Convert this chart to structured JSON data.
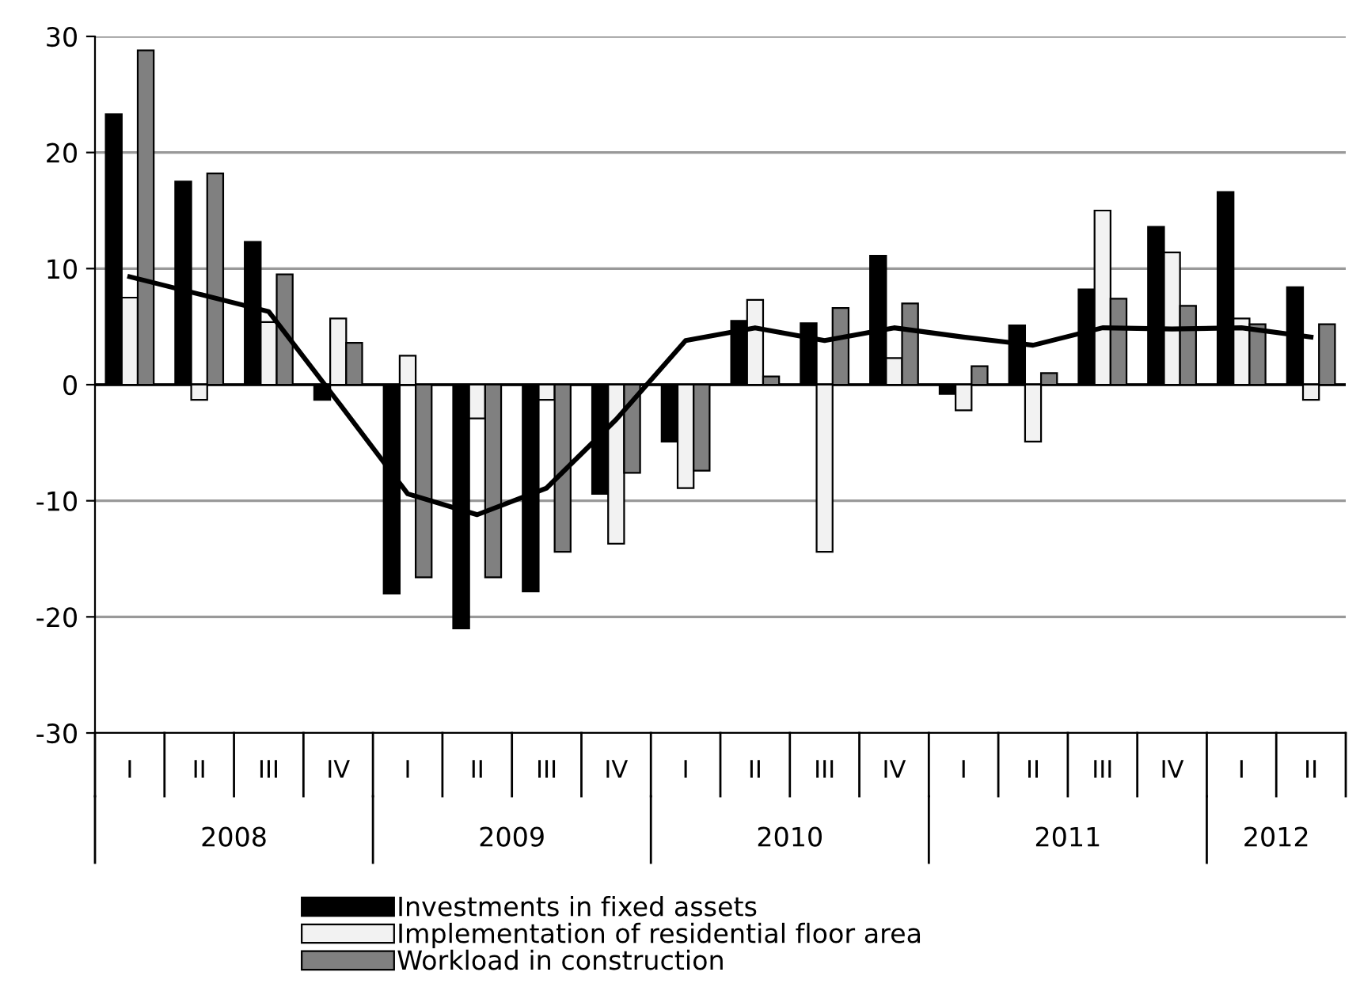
{
  "chart_data": {
    "type": "bar",
    "categories": [
      "I",
      "II",
      "III",
      "IV",
      "I",
      "II",
      "III",
      "IV",
      "I",
      "II",
      "III",
      "IV",
      "I",
      "II",
      "III",
      "IV",
      "I",
      "II"
    ],
    "series": [
      {
        "name": "Investments in fixed assets",
        "color": "#000000",
        "values": [
          23.3,
          17.5,
          12.3,
          -1.3,
          -18,
          -21,
          -17.8,
          -9.4,
          -4.9,
          5.5,
          5.3,
          11.1,
          -0.8,
          5.1,
          8.2,
          13.6,
          16.6,
          8.4
        ]
      },
      {
        "name": "Implementation of residential floor area",
        "color": "#f2f2f2",
        "values": [
          7.5,
          -1.3,
          5.4,
          5.7,
          2.5,
          -2.9,
          -1.3,
          -13.7,
          -8.9,
          7.3,
          -14.4,
          2.3,
          -2.2,
          -4.9,
          15,
          11.4,
          5.7,
          -1.3
        ]
      },
      {
        "name": "Workload in construction",
        "color": "#808080",
        "values": [
          28.8,
          18.2,
          9.5,
          3.6,
          -16.6,
          -16.6,
          -14.4,
          -7.6,
          -7.4,
          0.7,
          6.6,
          7.0,
          1.6,
          1.0,
          7.4,
          6.8,
          5.2,
          5.2
        ]
      },
      {
        "type": "line",
        "color": "#000000",
        "values": [
          9.3,
          7.8,
          6.3,
          -1.5,
          -9.4,
          -11.2,
          -8.9,
          -3.0,
          3.8,
          4.9,
          3.8,
          4.9,
          4.1,
          3.4,
          4.9,
          4.8,
          4.9,
          4.1
        ]
      }
    ],
    "annotations": [
      "2008",
      "2009",
      "2010",
      "2011",
      "2012"
    ],
    "ylim": [
      -30,
      30
    ],
    "yticks": [
      -30,
      -20,
      -10,
      0,
      10,
      20,
      30
    ],
    "ref_lines": [
      {
        "axis": "y",
        "value": 0,
        "color": "#000000"
      }
    ],
    "grid": "y",
    "legend": "bottom"
  }
}
